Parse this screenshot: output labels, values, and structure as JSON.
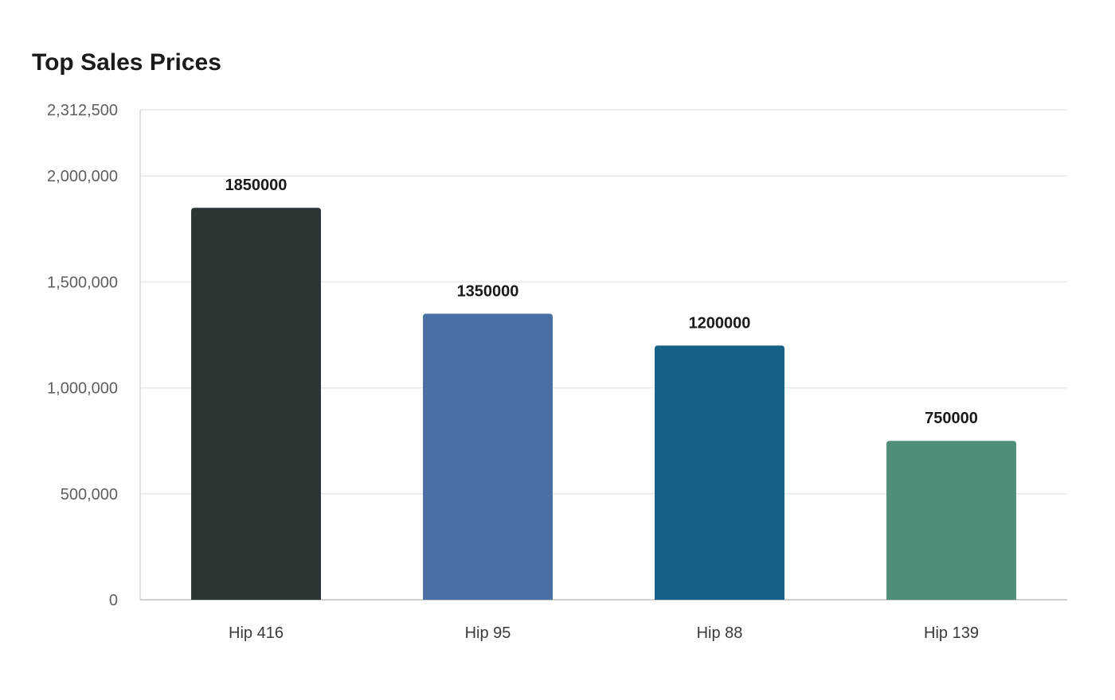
{
  "chart_data": {
    "type": "bar",
    "title": "Top Sales Prices",
    "xlabel": "",
    "ylabel": "",
    "categories": [
      "Hip 416",
      "Hip 95",
      "Hip 88",
      "Hip 139"
    ],
    "values": [
      1850000,
      1350000,
      1200000,
      750000
    ],
    "data_labels": [
      "1850000",
      "1350000",
      "1200000",
      "750000"
    ],
    "colors": [
      "#2d3436",
      "#4a6fa5",
      "#166088",
      "#4f8f7a"
    ],
    "ylim": [
      0,
      2312500
    ],
    "yticks": [
      0,
      500000,
      1000000,
      1500000,
      2000000,
      2312500
    ],
    "ytick_labels": [
      "0",
      "500,000",
      "1,000,000",
      "1,500,000",
      "2,000,000",
      "2,312,500"
    ],
    "grid": true,
    "legend": "none"
  }
}
